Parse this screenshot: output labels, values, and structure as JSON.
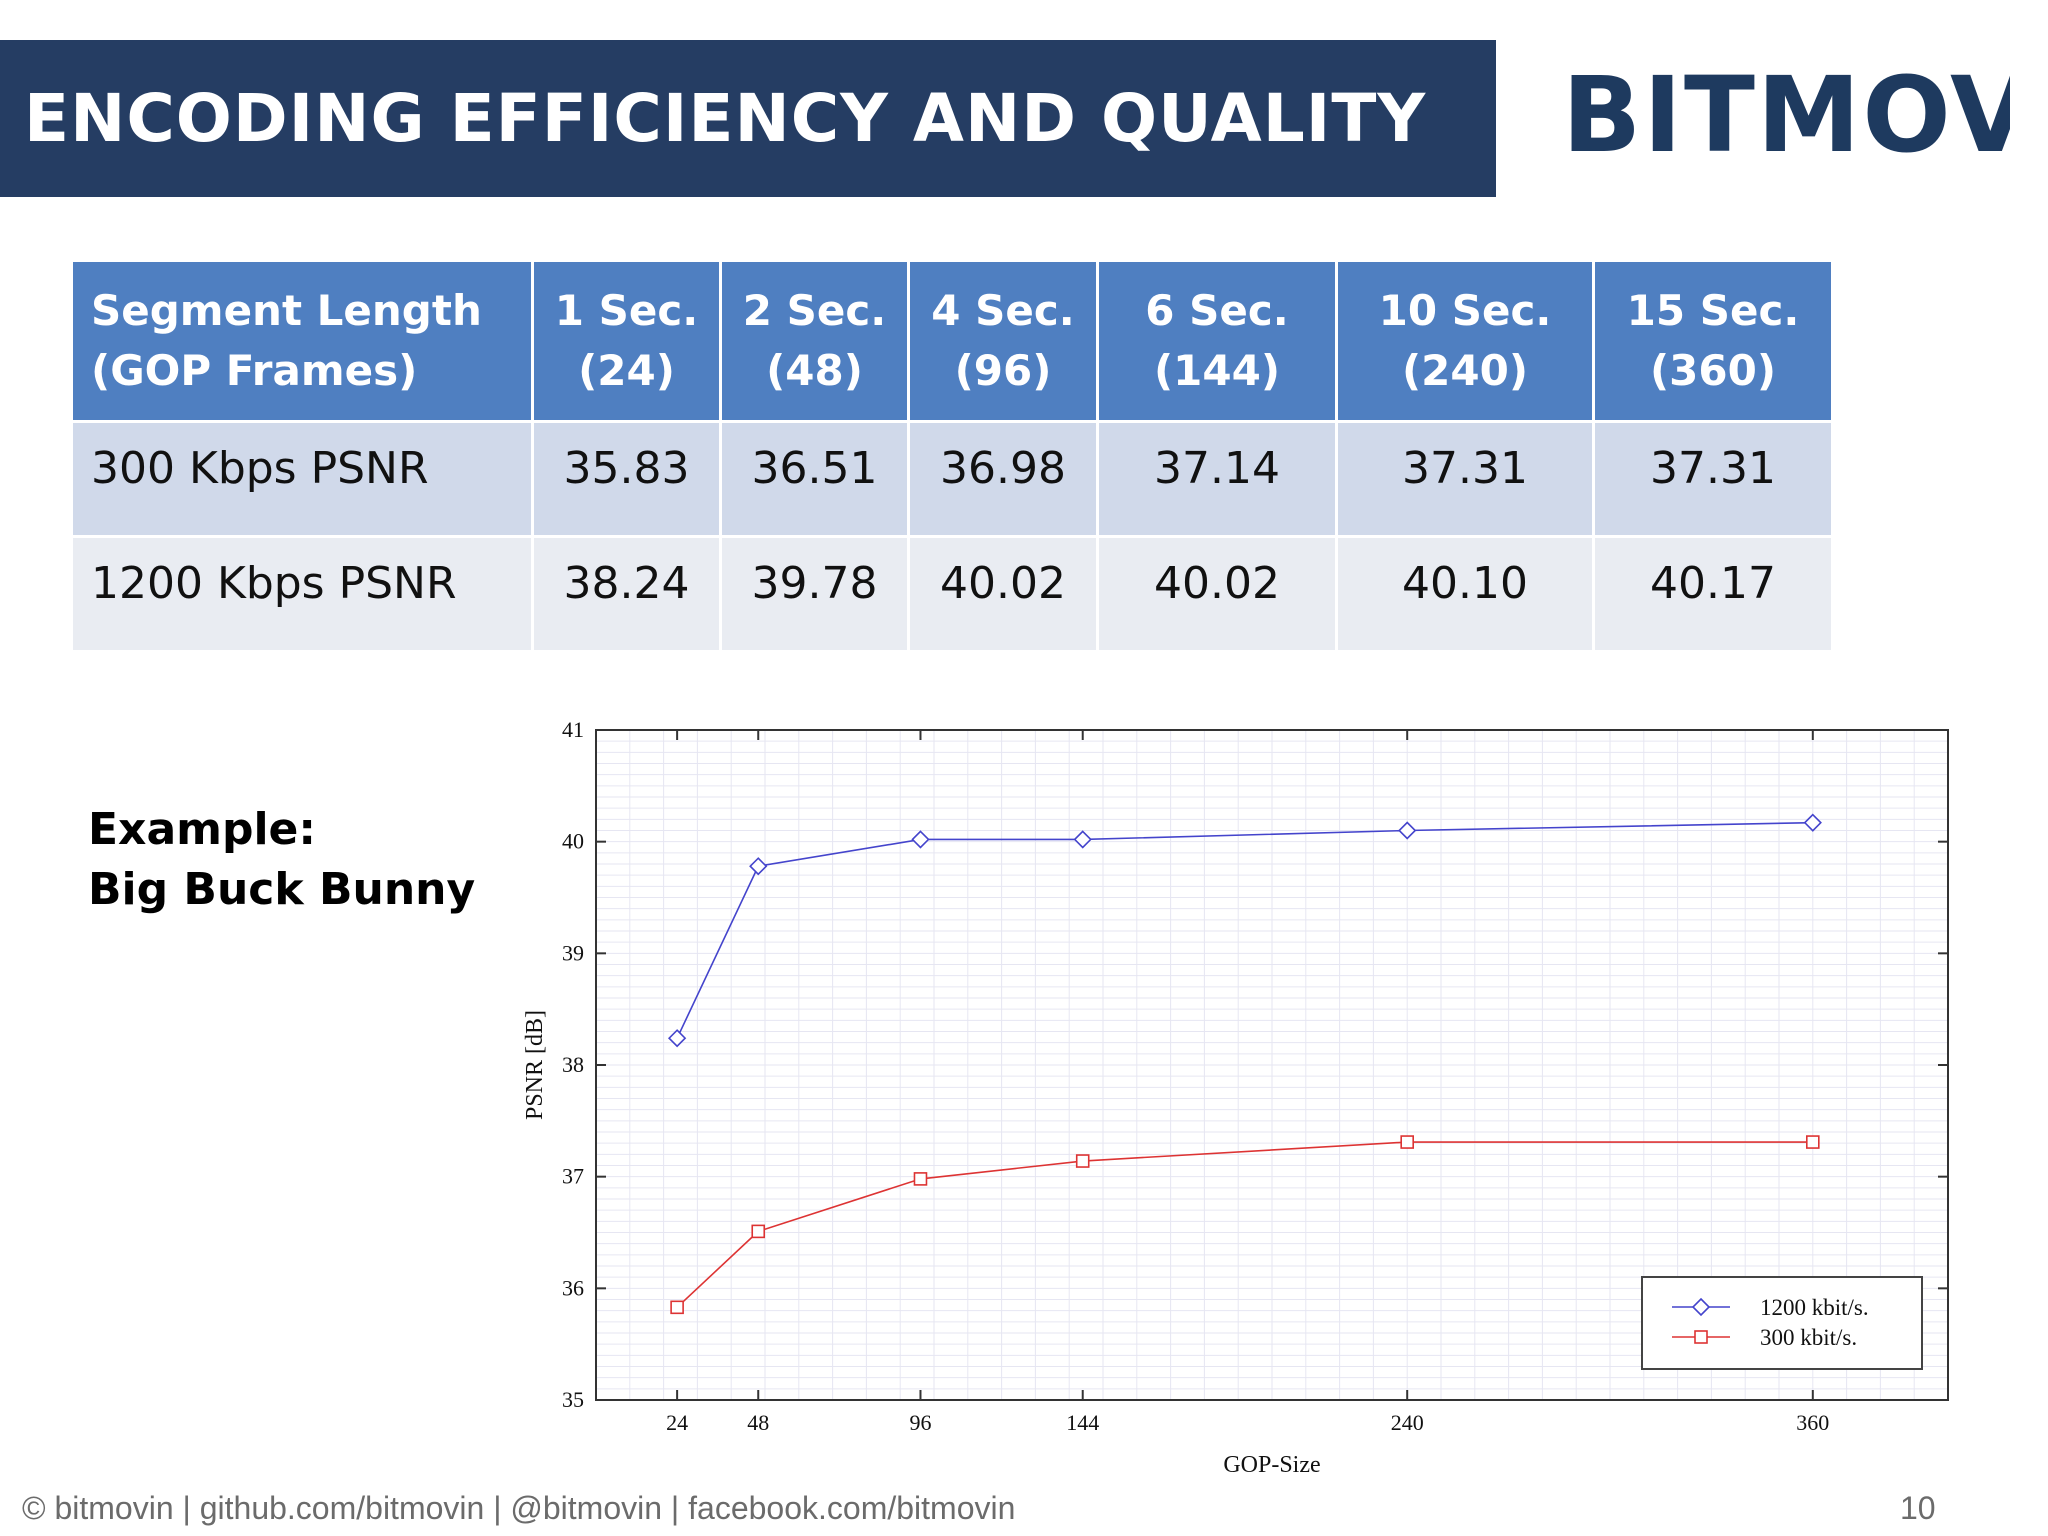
{
  "header": {
    "title": "ENCODING EFFICIENCY AND QUALITY",
    "logo_text": "BITMOVIN"
  },
  "table": {
    "columns": [
      [
        "Segment Length",
        "(GOP Frames)"
      ],
      [
        "1 Sec.",
        "(24)"
      ],
      [
        "2 Sec.",
        "(48)"
      ],
      [
        "4 Sec.",
        "(96)"
      ],
      [
        "6 Sec.",
        "(144)"
      ],
      [
        "10 Sec.",
        "(240)"
      ],
      [
        "15 Sec.",
        "(360)"
      ]
    ],
    "rows": [
      [
        "300 Kbps PSNR",
        "35.83",
        "36.51",
        "36.98",
        "37.14",
        "37.31",
        "37.31"
      ],
      [
        "1200 Kbps PSNR",
        "38.24",
        "39.78",
        "40.02",
        "40.02",
        "40.10",
        "40.17"
      ]
    ]
  },
  "example": {
    "line1": "Example:",
    "line2": "Big Buck Bunny"
  },
  "chart_data": {
    "type": "line",
    "xlabel": "GOP-Size",
    "ylabel": "PSNR [dB]",
    "x": [
      24,
      48,
      96,
      144,
      240,
      360
    ],
    "xticks": [
      24,
      48,
      96,
      144,
      240,
      360
    ],
    "xlim": [
      0,
      400
    ],
    "ylim": [
      35,
      41
    ],
    "yticks": [
      35,
      36,
      37,
      38,
      39,
      40,
      41
    ],
    "grid": true,
    "legend_position": "bottom-right",
    "series": [
      {
        "name": "1200 kbit/s.",
        "values": [
          38.24,
          39.78,
          40.02,
          40.02,
          40.1,
          40.17
        ],
        "color": "#4444cc",
        "marker": "diamond"
      },
      {
        "name": "300 kbit/s.",
        "values": [
          35.83,
          36.51,
          36.98,
          37.14,
          37.31,
          37.31
        ],
        "color": "#dd3333",
        "marker": "square"
      }
    ]
  },
  "footer": {
    "left": "© bitmovin | github.com/bitmovin | @bitmovin | facebook.com/bitmovin",
    "page_number": "10"
  }
}
